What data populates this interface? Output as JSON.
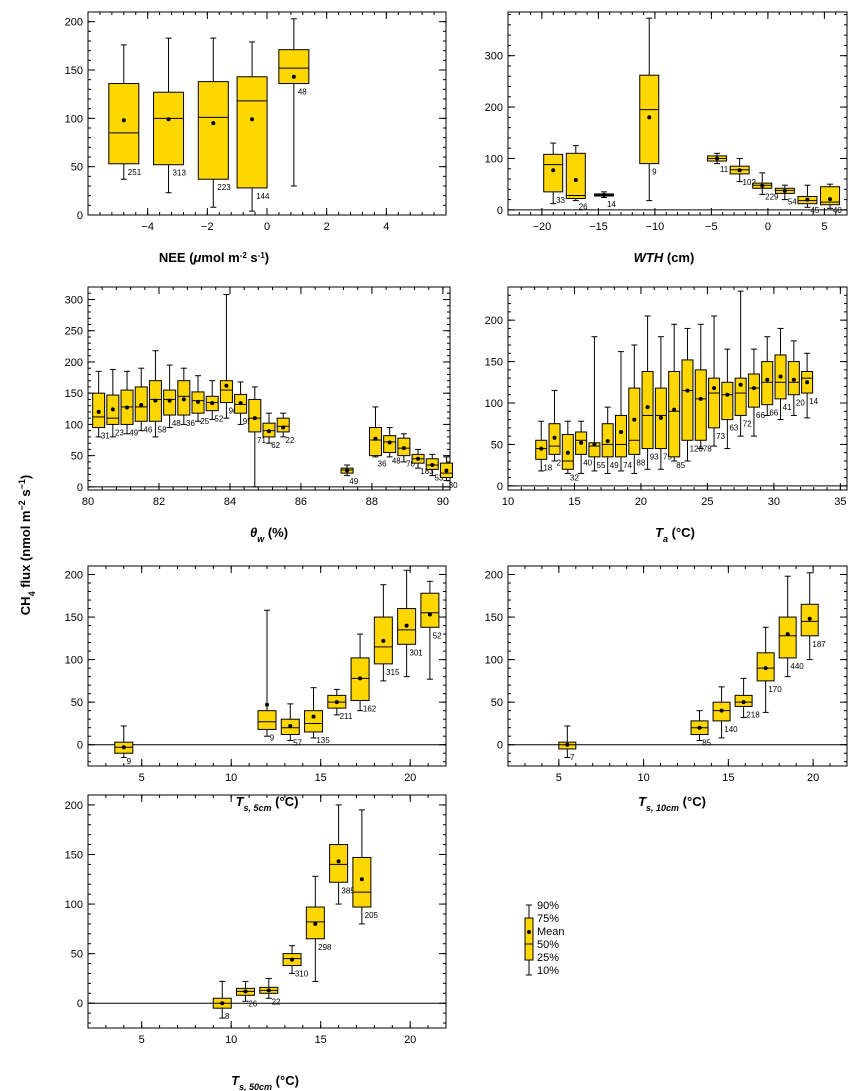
{
  "figure": {
    "ylabel_prefix": "CH",
    "ylabel_sub": "4",
    "ylabel_mid": " flux (nmol m",
    "ylabel_sup1": "−2",
    "ylabel_mid2": " s",
    "ylabel_sup2": "−1",
    "ylabel_end": ")",
    "box_color": "#FFD700",
    "legend": {
      "labels": [
        "90%",
        "75%",
        "Mean",
        "50%",
        "25%",
        "10%"
      ]
    }
  },
  "chart_data": [
    {
      "type": "box",
      "xlabel": [
        "NEE (",
        "μ",
        "mol m",
        "-2",
        " s",
        "-1",
        ")"
      ],
      "xlim": [
        -6,
        6
      ],
      "ylim": [
        0,
        210
      ],
      "xticks": [
        -4,
        -2,
        0,
        2,
        4
      ],
      "yticks": [
        0,
        50,
        100,
        150,
        200
      ],
      "boxes": [
        {
          "x": -4.8,
          "p10": 37,
          "q1": 53,
          "median": 85,
          "q3": 136,
          "p90": 176,
          "mean": 98,
          "n": "251"
        },
        {
          "x": -3.3,
          "p10": 23,
          "q1": 52,
          "median": 100,
          "q3": 127,
          "p90": 183,
          "mean": 99,
          "n": "313"
        },
        {
          "x": -1.8,
          "p10": 8,
          "q1": 37,
          "median": 101,
          "q3": 138,
          "p90": 183,
          "mean": 95,
          "n": "223"
        },
        {
          "x": -0.5,
          "p10": 4,
          "q1": 28,
          "median": 118,
          "q3": 143,
          "p90": 179,
          "mean": 99,
          "n": "144"
        },
        {
          "x": 0.9,
          "p10": 30,
          "q1": 136,
          "median": 152,
          "q3": 171,
          "p90": 203,
          "mean": 143,
          "n": "48"
        }
      ]
    },
    {
      "type": "box",
      "xlabel": [
        "WTH",
        " (cm)"
      ],
      "xlim": [
        -23,
        7
      ],
      "ylim": [
        -10,
        385
      ],
      "xticks": [
        -20,
        -15,
        -10,
        -5,
        0,
        5
      ],
      "yticks": [
        0,
        100,
        200,
        300
      ],
      "boxes": [
        {
          "x": -19,
          "p10": 12,
          "q1": 35,
          "median": 88,
          "q3": 108,
          "p90": 130,
          "mean": 77,
          "n": "33"
        },
        {
          "x": -17,
          "p10": 18,
          "q1": 22,
          "median": 28,
          "q3": 110,
          "p90": 125,
          "mean": 58,
          "n": "26"
        },
        {
          "x": -14.5,
          "p10": 24,
          "q1": 27,
          "median": 29,
          "q3": 31,
          "p90": 35,
          "mean": 29,
          "n": "14"
        },
        {
          "x": -10.5,
          "p10": 18,
          "q1": 90,
          "median": 195,
          "q3": 262,
          "p90": 373,
          "mean": 180,
          "n": "9"
        },
        {
          "x": -4.5,
          "p10": 90,
          "q1": 95,
          "median": 100,
          "q3": 105,
          "p90": 110,
          "mean": 100,
          "n": "11"
        },
        {
          "x": -2.5,
          "p10": 55,
          "q1": 70,
          "median": 78,
          "q3": 85,
          "p90": 100,
          "mean": 77,
          "n": "102"
        },
        {
          "x": -0.5,
          "p10": 30,
          "q1": 42,
          "median": 48,
          "q3": 52,
          "p90": 72,
          "mean": 47,
          "n": "229"
        },
        {
          "x": 1.5,
          "p10": 20,
          "q1": 32,
          "median": 38,
          "q3": 42,
          "p90": 48,
          "mean": 37,
          "n": "54"
        },
        {
          "x": 3.5,
          "p10": 5,
          "q1": 12,
          "median": 18,
          "q3": 26,
          "p90": 48,
          "mean": 20,
          "n": "45"
        },
        {
          "x": 5.5,
          "p10": 3,
          "q1": 10,
          "median": 15,
          "q3": 45,
          "p90": 50,
          "mean": 21,
          "n": "40"
        }
      ]
    },
    {
      "type": "box",
      "xlabel": [
        "θ",
        "w",
        " (%)"
      ],
      "xlim": [
        80,
        90.2
      ],
      "ylim": [
        -5,
        320
      ],
      "xticks": [
        80,
        82,
        84,
        86,
        88,
        90
      ],
      "yticks": [
        0,
        50,
        100,
        150,
        200,
        250,
        300
      ],
      "boxes": [
        {
          "x": 80.3,
          "p10": 80,
          "q1": 95,
          "median": 112,
          "q3": 150,
          "p90": 185,
          "mean": 120,
          "n": "31"
        },
        {
          "x": 80.7,
          "p10": 80,
          "q1": 100,
          "median": 110,
          "q3": 147,
          "p90": 188,
          "mean": 124,
          "n": "23"
        },
        {
          "x": 81.1,
          "p10": 85,
          "q1": 100,
          "median": 128,
          "q3": 155,
          "p90": 185,
          "mean": 127,
          "n": "49"
        },
        {
          "x": 81.5,
          "p10": 90,
          "q1": 105,
          "median": 128,
          "q3": 160,
          "p90": 190,
          "mean": 131,
          "n": "46"
        },
        {
          "x": 81.9,
          "p10": 80,
          "q1": 105,
          "median": 140,
          "q3": 170,
          "p90": 218,
          "mean": 138,
          "n": "58"
        },
        {
          "x": 82.3,
          "p10": 95,
          "q1": 115,
          "median": 140,
          "q3": 155,
          "p90": 195,
          "mean": 138,
          "n": "48"
        },
        {
          "x": 82.7,
          "p10": 100,
          "q1": 115,
          "median": 145,
          "q3": 170,
          "p90": 190,
          "mean": 140,
          "n": "36"
        },
        {
          "x": 83.1,
          "p10": 105,
          "q1": 118,
          "median": 138,
          "q3": 152,
          "p90": 178,
          "mean": 136,
          "n": "25"
        },
        {
          "x": 83.5,
          "p10": 108,
          "q1": 122,
          "median": 135,
          "q3": 145,
          "p90": 170,
          "mean": 134,
          "n": "52"
        },
        {
          "x": 83.9,
          "p10": 110,
          "q1": 135,
          "median": 155,
          "q3": 170,
          "p90": 308,
          "mean": 162,
          "n": "96"
        },
        {
          "x": 84.3,
          "p10": 100,
          "q1": 118,
          "median": 132,
          "q3": 148,
          "p90": 168,
          "mean": 134,
          "n": "95"
        },
        {
          "x": 84.7,
          "p10": 0,
          "q1": 88,
          "median": 110,
          "q3": 140,
          "p90": 160,
          "mean": 110,
          "n": "71"
        },
        {
          "x": 85.1,
          "p10": 70,
          "q1": 80,
          "median": 90,
          "q3": 102,
          "p90": 118,
          "mean": 89,
          "n": "62"
        },
        {
          "x": 85.5,
          "p10": 80,
          "q1": 88,
          "median": 97,
          "q3": 110,
          "p90": 118,
          "mean": 95,
          "n": "22"
        },
        {
          "x": 87.3,
          "p10": 18,
          "q1": 22,
          "median": 27,
          "q3": 30,
          "p90": 35,
          "mean": 26,
          "n": "49"
        },
        {
          "x": 88.1,
          "p10": 48,
          "q1": 50,
          "median": 75,
          "q3": 95,
          "p90": 128,
          "mean": 77,
          "n": "36"
        },
        {
          "x": 88.5,
          "p10": 48,
          "q1": 55,
          "median": 72,
          "q3": 82,
          "p90": 95,
          "mean": 71,
          "n": "48"
        },
        {
          "x": 88.9,
          "p10": 40,
          "q1": 50,
          "median": 62,
          "q3": 78,
          "p90": 85,
          "mean": 62,
          "n": "70"
        },
        {
          "x": 89.3,
          "p10": 30,
          "q1": 38,
          "median": 45,
          "q3": 52,
          "p90": 60,
          "mean": 45,
          "n": "183"
        },
        {
          "x": 89.7,
          "p10": 18,
          "q1": 28,
          "median": 35,
          "q3": 45,
          "p90": 52,
          "mean": 35,
          "n": "53"
        },
        {
          "x": 90.1,
          "p10": 10,
          "q1": 15,
          "median": 22,
          "q3": 38,
          "p90": 48,
          "mean": 26,
          "n": "30"
        }
      ]
    },
    {
      "type": "box",
      "xlabel": [
        "T",
        "a",
        " (°C)"
      ],
      "xlim": [
        10,
        35.5
      ],
      "ylim": [
        -5,
        240
      ],
      "xticks": [
        10,
        15,
        20,
        25,
        30,
        35
      ],
      "yticks": [
        0,
        50,
        100,
        150,
        200
      ],
      "boxes": [
        {
          "x": 12.5,
          "p10": 18,
          "q1": 32,
          "median": 45,
          "q3": 55,
          "p90": 78,
          "mean": 45,
          "n": "18"
        },
        {
          "x": 13.5,
          "p10": 30,
          "q1": 38,
          "median": 48,
          "q3": 75,
          "p90": 115,
          "mean": 58,
          "n": "27"
        },
        {
          "x": 14.5,
          "p10": 15,
          "q1": 20,
          "median": 30,
          "q3": 62,
          "p90": 78,
          "mean": 40,
          "n": "32"
        },
        {
          "x": 15.5,
          "p10": 15,
          "q1": 38,
          "median": 55,
          "q3": 65,
          "p90": 78,
          "mean": 52,
          "n": "40"
        },
        {
          "x": 16.5,
          "p10": 18,
          "q1": 35,
          "median": 48,
          "q3": 52,
          "p90": 180,
          "mean": 50,
          "n": "55"
        },
        {
          "x": 17.5,
          "p10": 15,
          "q1": 35,
          "median": 50,
          "q3": 75,
          "p90": 95,
          "mean": 54,
          "n": "49"
        },
        {
          "x": 18.5,
          "p10": 18,
          "q1": 35,
          "median": 50,
          "q3": 85,
          "p90": 162,
          "mean": 65,
          "n": "74"
        },
        {
          "x": 19.5,
          "p10": 15,
          "q1": 38,
          "median": 55,
          "q3": 118,
          "p90": 170,
          "mean": 80,
          "n": "88"
        },
        {
          "x": 20.5,
          "p10": 20,
          "q1": 45,
          "median": 85,
          "q3": 138,
          "p90": 205,
          "mean": 95,
          "n": "93"
        },
        {
          "x": 21.5,
          "p10": 20,
          "q1": 45,
          "median": 85,
          "q3": 118,
          "p90": 180,
          "mean": 82,
          "n": "75"
        },
        {
          "x": 22.5,
          "p10": 30,
          "q1": 35,
          "median": 90,
          "q3": 138,
          "p90": 195,
          "mean": 92,
          "n": "85"
        },
        {
          "x": 23.5,
          "p10": 30,
          "q1": 55,
          "median": 115,
          "q3": 152,
          "p90": 190,
          "mean": 115,
          "n": "120"
        },
        {
          "x": 24.5,
          "p10": 45,
          "q1": 55,
          "median": 105,
          "q3": 140,
          "p90": 195,
          "mean": 105,
          "n": "78"
        },
        {
          "x": 25.5,
          "p10": 48,
          "q1": 70,
          "median": 112,
          "q3": 130,
          "p90": 205,
          "mean": 118,
          "n": "73"
        },
        {
          "x": 26.5,
          "p10": 45,
          "q1": 80,
          "median": 110,
          "q3": 125,
          "p90": 165,
          "mean": 110,
          "n": "63"
        },
        {
          "x": 27.5,
          "p10": 60,
          "q1": 85,
          "median": 112,
          "q3": 130,
          "p90": 235,
          "mean": 122,
          "n": "72"
        },
        {
          "x": 28.5,
          "p10": 60,
          "q1": 95,
          "median": 118,
          "q3": 135,
          "p90": 165,
          "mean": 118,
          "n": "66"
        },
        {
          "x": 29.5,
          "p10": 85,
          "q1": 98,
          "median": 125,
          "q3": 150,
          "p90": 180,
          "mean": 128,
          "n": "66"
        },
        {
          "x": 30.5,
          "p10": 80,
          "q1": 105,
          "median": 125,
          "q3": 158,
          "p90": 190,
          "mean": 132,
          "n": "41"
        },
        {
          "x": 31.5,
          "p10": 85,
          "q1": 110,
          "median": 125,
          "q3": 150,
          "p90": 175,
          "mean": 128,
          "n": "20"
        },
        {
          "x": 32.5,
          "p10": 82,
          "q1": 112,
          "median": 130,
          "q3": 138,
          "p90": 160,
          "mean": 125,
          "n": "14"
        }
      ]
    },
    {
      "type": "box",
      "xlabel": [
        "T",
        "s, 5cm",
        " (°C)"
      ],
      "xlim": [
        2,
        22
      ],
      "ylim": [
        -25,
        210
      ],
      "xticks": [
        5,
        10,
        15,
        20
      ],
      "yticks": [
        0,
        50,
        100,
        150,
        200
      ],
      "boxes": [
        {
          "x": 4,
          "p10": -15,
          "q1": -10,
          "median": -3,
          "q3": 3,
          "p90": 22,
          "mean": -3,
          "n": "9"
        },
        {
          "x": 12,
          "p10": 10,
          "q1": 18,
          "median": 27,
          "q3": 40,
          "p90": 158,
          "mean": 47,
          "n": "9"
        },
        {
          "x": 13.3,
          "p10": 5,
          "q1": 12,
          "median": 20,
          "q3": 30,
          "p90": 48,
          "mean": 22,
          "n": "57"
        },
        {
          "x": 14.6,
          "p10": 8,
          "q1": 15,
          "median": 25,
          "q3": 40,
          "p90": 67,
          "mean": 33,
          "n": "135"
        },
        {
          "x": 15.9,
          "p10": 35,
          "q1": 43,
          "median": 50,
          "q3": 58,
          "p90": 65,
          "mean": 50,
          "n": "211"
        },
        {
          "x": 17.2,
          "p10": 40,
          "q1": 52,
          "median": 78,
          "q3": 102,
          "p90": 130,
          "mean": 78,
          "n": "162"
        },
        {
          "x": 18.5,
          "p10": 75,
          "q1": 95,
          "median": 115,
          "q3": 150,
          "p90": 188,
          "mean": 122,
          "n": "315"
        },
        {
          "x": 19.8,
          "p10": 80,
          "q1": 118,
          "median": 135,
          "q3": 160,
          "p90": 205,
          "mean": 140,
          "n": "301"
        },
        {
          "x": 21.1,
          "p10": 77,
          "q1": 138,
          "median": 155,
          "q3": 178,
          "p90": 192,
          "mean": 153,
          "n": "52"
        }
      ]
    },
    {
      "type": "box",
      "xlabel": [
        "T",
        "s, 10cm",
        " (°C)"
      ],
      "xlim": [
        2,
        22
      ],
      "ylim": [
        -25,
        210
      ],
      "xticks": [
        5,
        10,
        15,
        20
      ],
      "yticks": [
        0,
        50,
        100,
        150,
        200
      ],
      "boxes": [
        {
          "x": 5.5,
          "p10": -15,
          "q1": -5,
          "median": 0,
          "q3": 3,
          "p90": 22,
          "mean": 0,
          "n": "7"
        },
        {
          "x": 13.3,
          "p10": 5,
          "q1": 12,
          "median": 20,
          "q3": 28,
          "p90": 40,
          "mean": 20,
          "n": "85"
        },
        {
          "x": 14.6,
          "p10": 8,
          "q1": 28,
          "median": 40,
          "q3": 50,
          "p90": 68,
          "mean": 40,
          "n": "140"
        },
        {
          "x": 15.9,
          "p10": 32,
          "q1": 45,
          "median": 50,
          "q3": 58,
          "p90": 78,
          "mean": 50,
          "n": "218"
        },
        {
          "x": 17.2,
          "p10": 38,
          "q1": 75,
          "median": 90,
          "q3": 108,
          "p90": 138,
          "mean": 90,
          "n": "170"
        },
        {
          "x": 18.5,
          "p10": 80,
          "q1": 102,
          "median": 128,
          "q3": 150,
          "p90": 198,
          "mean": 130,
          "n": "440"
        },
        {
          "x": 19.8,
          "p10": 100,
          "q1": 128,
          "median": 145,
          "q3": 165,
          "p90": 202,
          "mean": 148,
          "n": "187"
        }
      ]
    },
    {
      "type": "box",
      "xlabel": [
        "T",
        "s, 50cm",
        " (°C)"
      ],
      "xlim": [
        2,
        22
      ],
      "ylim": [
        -25,
        210
      ],
      "xticks": [
        5,
        10,
        15,
        20
      ],
      "yticks": [
        0,
        50,
        100,
        150,
        200
      ],
      "boxes": [
        {
          "x": 9.5,
          "p10": -15,
          "q1": -5,
          "median": 0,
          "q3": 5,
          "p90": 22,
          "mean": 0,
          "n": "8"
        },
        {
          "x": 10.8,
          "p10": 2,
          "q1": 8,
          "median": 12,
          "q3": 15,
          "p90": 22,
          "mean": 12,
          "n": "26"
        },
        {
          "x": 12.1,
          "p10": 5,
          "q1": 10,
          "median": 13,
          "q3": 16,
          "p90": 25,
          "mean": 13,
          "n": "22"
        },
        {
          "x": 13.4,
          "p10": 30,
          "q1": 38,
          "median": 45,
          "q3": 50,
          "p90": 58,
          "mean": 44,
          "n": "310"
        },
        {
          "x": 14.7,
          "p10": 22,
          "q1": 65,
          "median": 82,
          "q3": 97,
          "p90": 128,
          "mean": 80,
          "n": "298"
        },
        {
          "x": 16,
          "p10": 100,
          "q1": 122,
          "median": 140,
          "q3": 160,
          "p90": 200,
          "mean": 143,
          "n": "385"
        },
        {
          "x": 17.3,
          "p10": 80,
          "q1": 97,
          "median": 112,
          "q3": 147,
          "p90": 195,
          "mean": 125,
          "n": "205"
        }
      ]
    }
  ]
}
